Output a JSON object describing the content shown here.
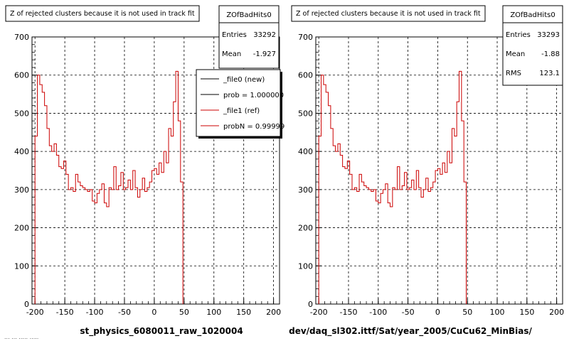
{
  "bottom_left_stamp": "... ... ..... .....",
  "chart_data": [
    {
      "type": "line",
      "title": "Z of rejected clusters  because it is not used in track fit",
      "xlabel": "st_physics_6080011_raw_1020004",
      "ylabel": "",
      "xlim": [
        -205,
        210
      ],
      "ylim": [
        0,
        700
      ],
      "xticks": [
        -200,
        -150,
        -100,
        -50,
        0,
        50,
        100,
        150,
        200
      ],
      "yticks": [
        0,
        100,
        200,
        300,
        400,
        500,
        600,
        700
      ],
      "grid": true,
      "bin_edges_start": -200,
      "bin_width": 4,
      "stats_box": {
        "name": "ZOfBadHits0",
        "rows": [
          {
            "label": "Entries",
            "value": "33292"
          },
          {
            "label": "Mean",
            "value": "-1.927"
          }
        ]
      },
      "legend": {
        "placement": "top-right",
        "entries": [
          {
            "label": "_file0 (new)",
            "color": "#000000"
          },
          {
            "label": "prob = 1.000000",
            "color": "#000000"
          },
          {
            "label": "_file1 (ref)",
            "color": "#cc0000"
          },
          {
            "label": "probN = 0.99999",
            "color": "#cc0000"
          }
        ]
      },
      "series": [
        {
          "color": "#cc0000",
          "values": [
            440,
            600,
            575,
            555,
            520,
            460,
            415,
            400,
            420,
            390,
            360,
            355,
            375,
            340,
            300,
            305,
            295,
            340,
            320,
            310,
            305,
            300,
            295,
            300,
            270,
            265,
            290,
            300,
            315,
            265,
            255,
            305,
            300,
            360,
            300,
            310,
            345,
            300,
            305,
            325,
            300,
            350,
            305,
            280,
            300,
            330,
            295,
            305,
            320,
            350,
            355,
            340,
            370,
            345,
            400,
            370,
            460,
            440,
            530,
            610,
            480,
            320
          ]
        }
      ]
    },
    {
      "type": "line",
      "title": "Z of rejected clusters  because it is not used in track fit",
      "xlabel": "dev/daq_sl302.ittf/Sat/year_2005/CuCu62_MinBias/",
      "ylabel": "",
      "xlim": [
        -205,
        210
      ],
      "ylim": [
        0,
        700
      ],
      "xticks": [
        -200,
        -150,
        -100,
        -50,
        0,
        50,
        100,
        150,
        200
      ],
      "yticks": [
        0,
        100,
        200,
        300,
        400,
        500,
        600,
        700
      ],
      "grid": true,
      "bin_edges_start": -200,
      "bin_width": 4,
      "stats_box": {
        "name": "ZOfBadHits0",
        "rows": [
          {
            "label": "Entries",
            "value": "33293"
          },
          {
            "label": "Mean",
            "value": "-1.88"
          },
          {
            "label": "RMS",
            "value": "123.1"
          }
        ]
      },
      "series": [
        {
          "color": "#cc0000",
          "values": [
            440,
            600,
            575,
            555,
            520,
            460,
            415,
            400,
            420,
            390,
            360,
            355,
            375,
            340,
            300,
            305,
            295,
            340,
            320,
            310,
            305,
            300,
            295,
            300,
            270,
            265,
            290,
            300,
            315,
            265,
            255,
            305,
            300,
            360,
            300,
            310,
            345,
            300,
            305,
            325,
            300,
            350,
            305,
            280,
            300,
            330,
            295,
            305,
            320,
            350,
            355,
            340,
            370,
            345,
            400,
            370,
            460,
            440,
            530,
            610,
            480,
            320
          ]
        }
      ]
    }
  ]
}
